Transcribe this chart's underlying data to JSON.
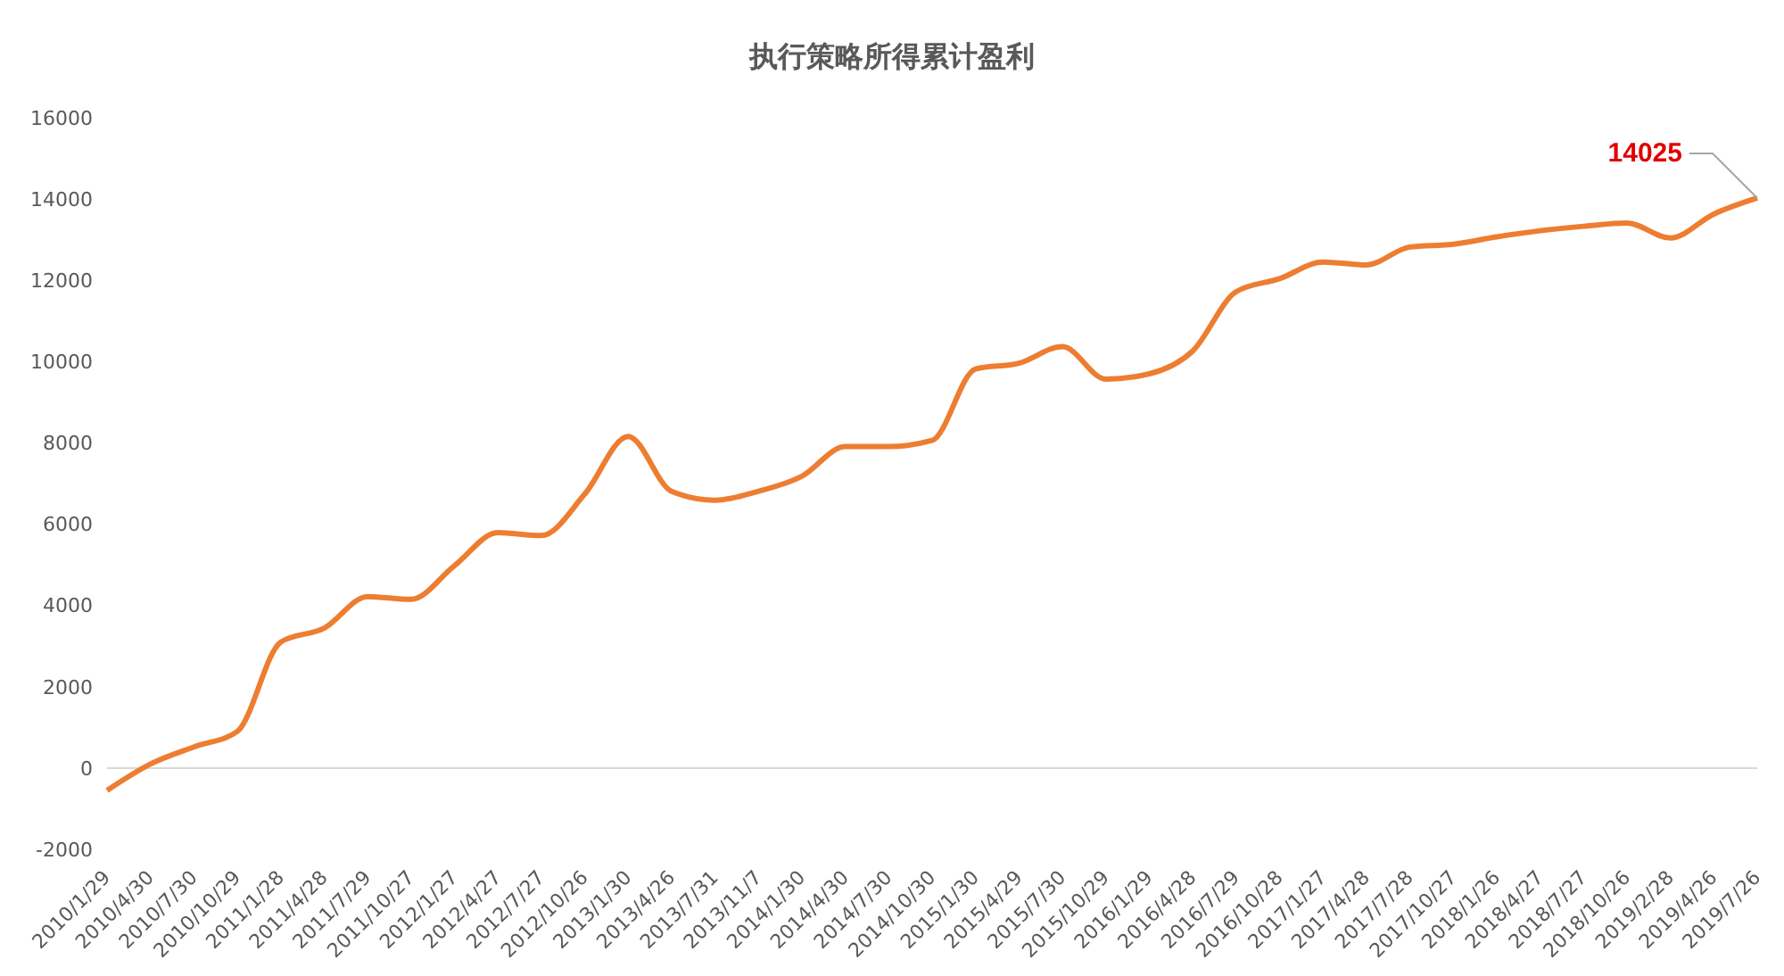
{
  "chart_data": {
    "type": "line",
    "title": "执行策略所得累计盈利",
    "categories": [
      "2010/1/29",
      "2010/4/30",
      "2010/7/30",
      "2010/10/29",
      "2011/1/28",
      "2011/4/28",
      "2011/7/29",
      "2011/10/27",
      "2012/1/27",
      "2012/4/27",
      "2012/7/27",
      "2012/10/26",
      "2013/1/30",
      "2013/4/26",
      "2013/7/31",
      "2013/11/7",
      "2014/1/30",
      "2014/4/30",
      "2014/7/30",
      "2014/10/30",
      "2015/1/30",
      "2015/4/29",
      "2015/7/30",
      "2015/10/29",
      "2016/1/29",
      "2016/4/28",
      "2016/7/29",
      "2016/10/28",
      "2017/1/27",
      "2017/4/28",
      "2017/7/28",
      "2017/10/27",
      "2018/1/26",
      "2018/4/27",
      "2018/7/27",
      "2018/10/26",
      "2019/2/28",
      "2019/4/26",
      "2019/7/26"
    ],
    "series": [
      {
        "color": "#ed7d31",
        "values": [
          -550,
          100,
          520,
          900,
          3100,
          3440,
          4220,
          4150,
          4980,
          5790,
          5720,
          6740,
          8160,
          6810,
          6590,
          6810,
          7180,
          7910,
          7910,
          8060,
          9820,
          9960,
          10370,
          9570,
          9700,
          10260,
          11720,
          12040,
          12450,
          12380,
          12820,
          12890,
          13070,
          13220,
          13330,
          13410,
          13040,
          13630,
          14025
        ]
      }
    ],
    "ylim": [
      -2000,
      16000
    ],
    "yticks": [
      -2000,
      0,
      2000,
      4000,
      6000,
      8000,
      10000,
      12000,
      14000,
      16000
    ],
    "grid": false,
    "legend": false,
    "marker": "none",
    "line_style": "solid",
    "ref_lines": [
      {
        "axis": "y",
        "value": 0,
        "color": "#d9d9d9"
      }
    ],
    "annotations": [
      {
        "text": "14025",
        "x": "2019/7/26",
        "y": 14025
      }
    ]
  }
}
